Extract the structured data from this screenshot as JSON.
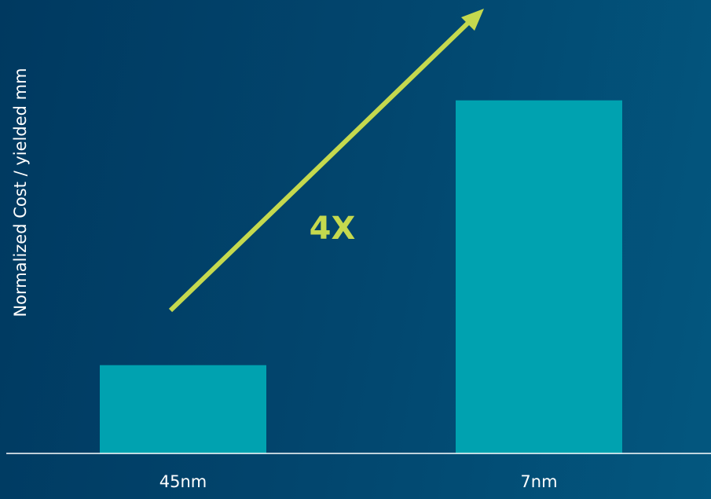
{
  "chart_data": {
    "type": "bar",
    "title": "",
    "xlabel": "",
    "ylabel": "Normalized Cost / yielded mm",
    "categories": [
      "45nm",
      "7nm"
    ],
    "values": [
      1,
      4
    ],
    "ylim": [
      0,
      4.3
    ],
    "grid": false,
    "annotation": {
      "text": "4X",
      "type": "arrow"
    },
    "colors": {
      "bar": "#00a2b0",
      "axis": "#ffffff",
      "arrow": "#c5d94e",
      "annotation_text": "#c5d94e",
      "background_start": "#003960",
      "background_end": "#03577f"
    }
  }
}
